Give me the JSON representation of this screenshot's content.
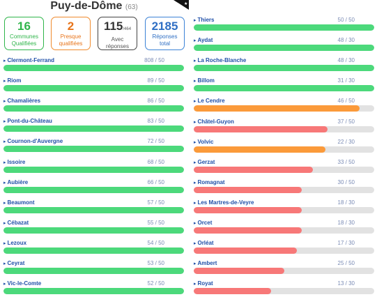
{
  "header": {
    "title": "Puy-de-Dôme",
    "count": "(63)"
  },
  "cards": [
    {
      "value": "16",
      "sup": "",
      "label_line1": "Communes",
      "label_line2": "Qualifiées"
    },
    {
      "value": "2",
      "sup": "",
      "label_line1": "Presque",
      "label_line2": "qualifiées"
    },
    {
      "value": "115",
      "sup": "/464",
      "label_line1": "Avec",
      "label_line2": "réponses"
    },
    {
      "value": "2185",
      "sup": "",
      "label_line1": "Réponses",
      "label_line2": "total"
    }
  ],
  "colors": {
    "green": "#4cd97b",
    "orange": "#fb9a3a",
    "red": "#f77878",
    "track": "#e2e2e2"
  },
  "left_list": [
    {
      "name": "Clermont-Ferrand",
      "score": "808 / 50",
      "fill": 1.0,
      "color": "green"
    },
    {
      "name": "Riom",
      "score": "89 / 50",
      "fill": 1.0,
      "color": "green"
    },
    {
      "name": "Chamalières",
      "score": "86 / 50",
      "fill": 1.0,
      "color": "green"
    },
    {
      "name": "Pont-du-Château",
      "score": "83 / 50",
      "fill": 1.0,
      "color": "green"
    },
    {
      "name": "Cournon-d'Auvergne",
      "score": "72 / 50",
      "fill": 1.0,
      "color": "green"
    },
    {
      "name": "Issoire",
      "score": "68 / 50",
      "fill": 1.0,
      "color": "green"
    },
    {
      "name": "Aubière",
      "score": "66 / 50",
      "fill": 1.0,
      "color": "green"
    },
    {
      "name": "Beaumont",
      "score": "57 / 50",
      "fill": 1.0,
      "color": "green"
    },
    {
      "name": "Cébazat",
      "score": "55 / 50",
      "fill": 1.0,
      "color": "green"
    },
    {
      "name": "Lezoux",
      "score": "54 / 50",
      "fill": 1.0,
      "color": "green"
    },
    {
      "name": "Ceyrat",
      "score": "53 / 50",
      "fill": 1.0,
      "color": "green"
    },
    {
      "name": "Vic-le-Comte",
      "score": "52 / 50",
      "fill": 1.0,
      "color": "green"
    }
  ],
  "right_list": [
    {
      "name": "Thiers",
      "score": "50 / 50",
      "fill": 1.0,
      "color": "green"
    },
    {
      "name": "Aydat",
      "score": "48 / 30",
      "fill": 1.0,
      "color": "green"
    },
    {
      "name": "La Roche-Blanche",
      "score": "48 / 30",
      "fill": 1.0,
      "color": "green"
    },
    {
      "name": "Billom",
      "score": "31 / 30",
      "fill": 1.0,
      "color": "green"
    },
    {
      "name": "Le Cendre",
      "score": "46 / 50",
      "fill": 0.92,
      "color": "orange"
    },
    {
      "name": "Châtel-Guyon",
      "score": "37 / 50",
      "fill": 0.74,
      "color": "red"
    },
    {
      "name": "Volvic",
      "score": "22 / 30",
      "fill": 0.73,
      "color": "orange"
    },
    {
      "name": "Gerzat",
      "score": "33 / 50",
      "fill": 0.66,
      "color": "red"
    },
    {
      "name": "Romagnat",
      "score": "30 / 50",
      "fill": 0.6,
      "color": "red"
    },
    {
      "name": "Les Martres-de-Veyre",
      "score": "18 / 30",
      "fill": 0.6,
      "color": "red"
    },
    {
      "name": "Orcet",
      "score": "18 / 30",
      "fill": 0.6,
      "color": "red"
    },
    {
      "name": "Orléat",
      "score": "17 / 30",
      "fill": 0.57,
      "color": "red"
    },
    {
      "name": "Ambert",
      "score": "25 / 50",
      "fill": 0.5,
      "color": "red"
    },
    {
      "name": "Royat",
      "score": "13 / 30",
      "fill": 0.43,
      "color": "red"
    }
  ]
}
